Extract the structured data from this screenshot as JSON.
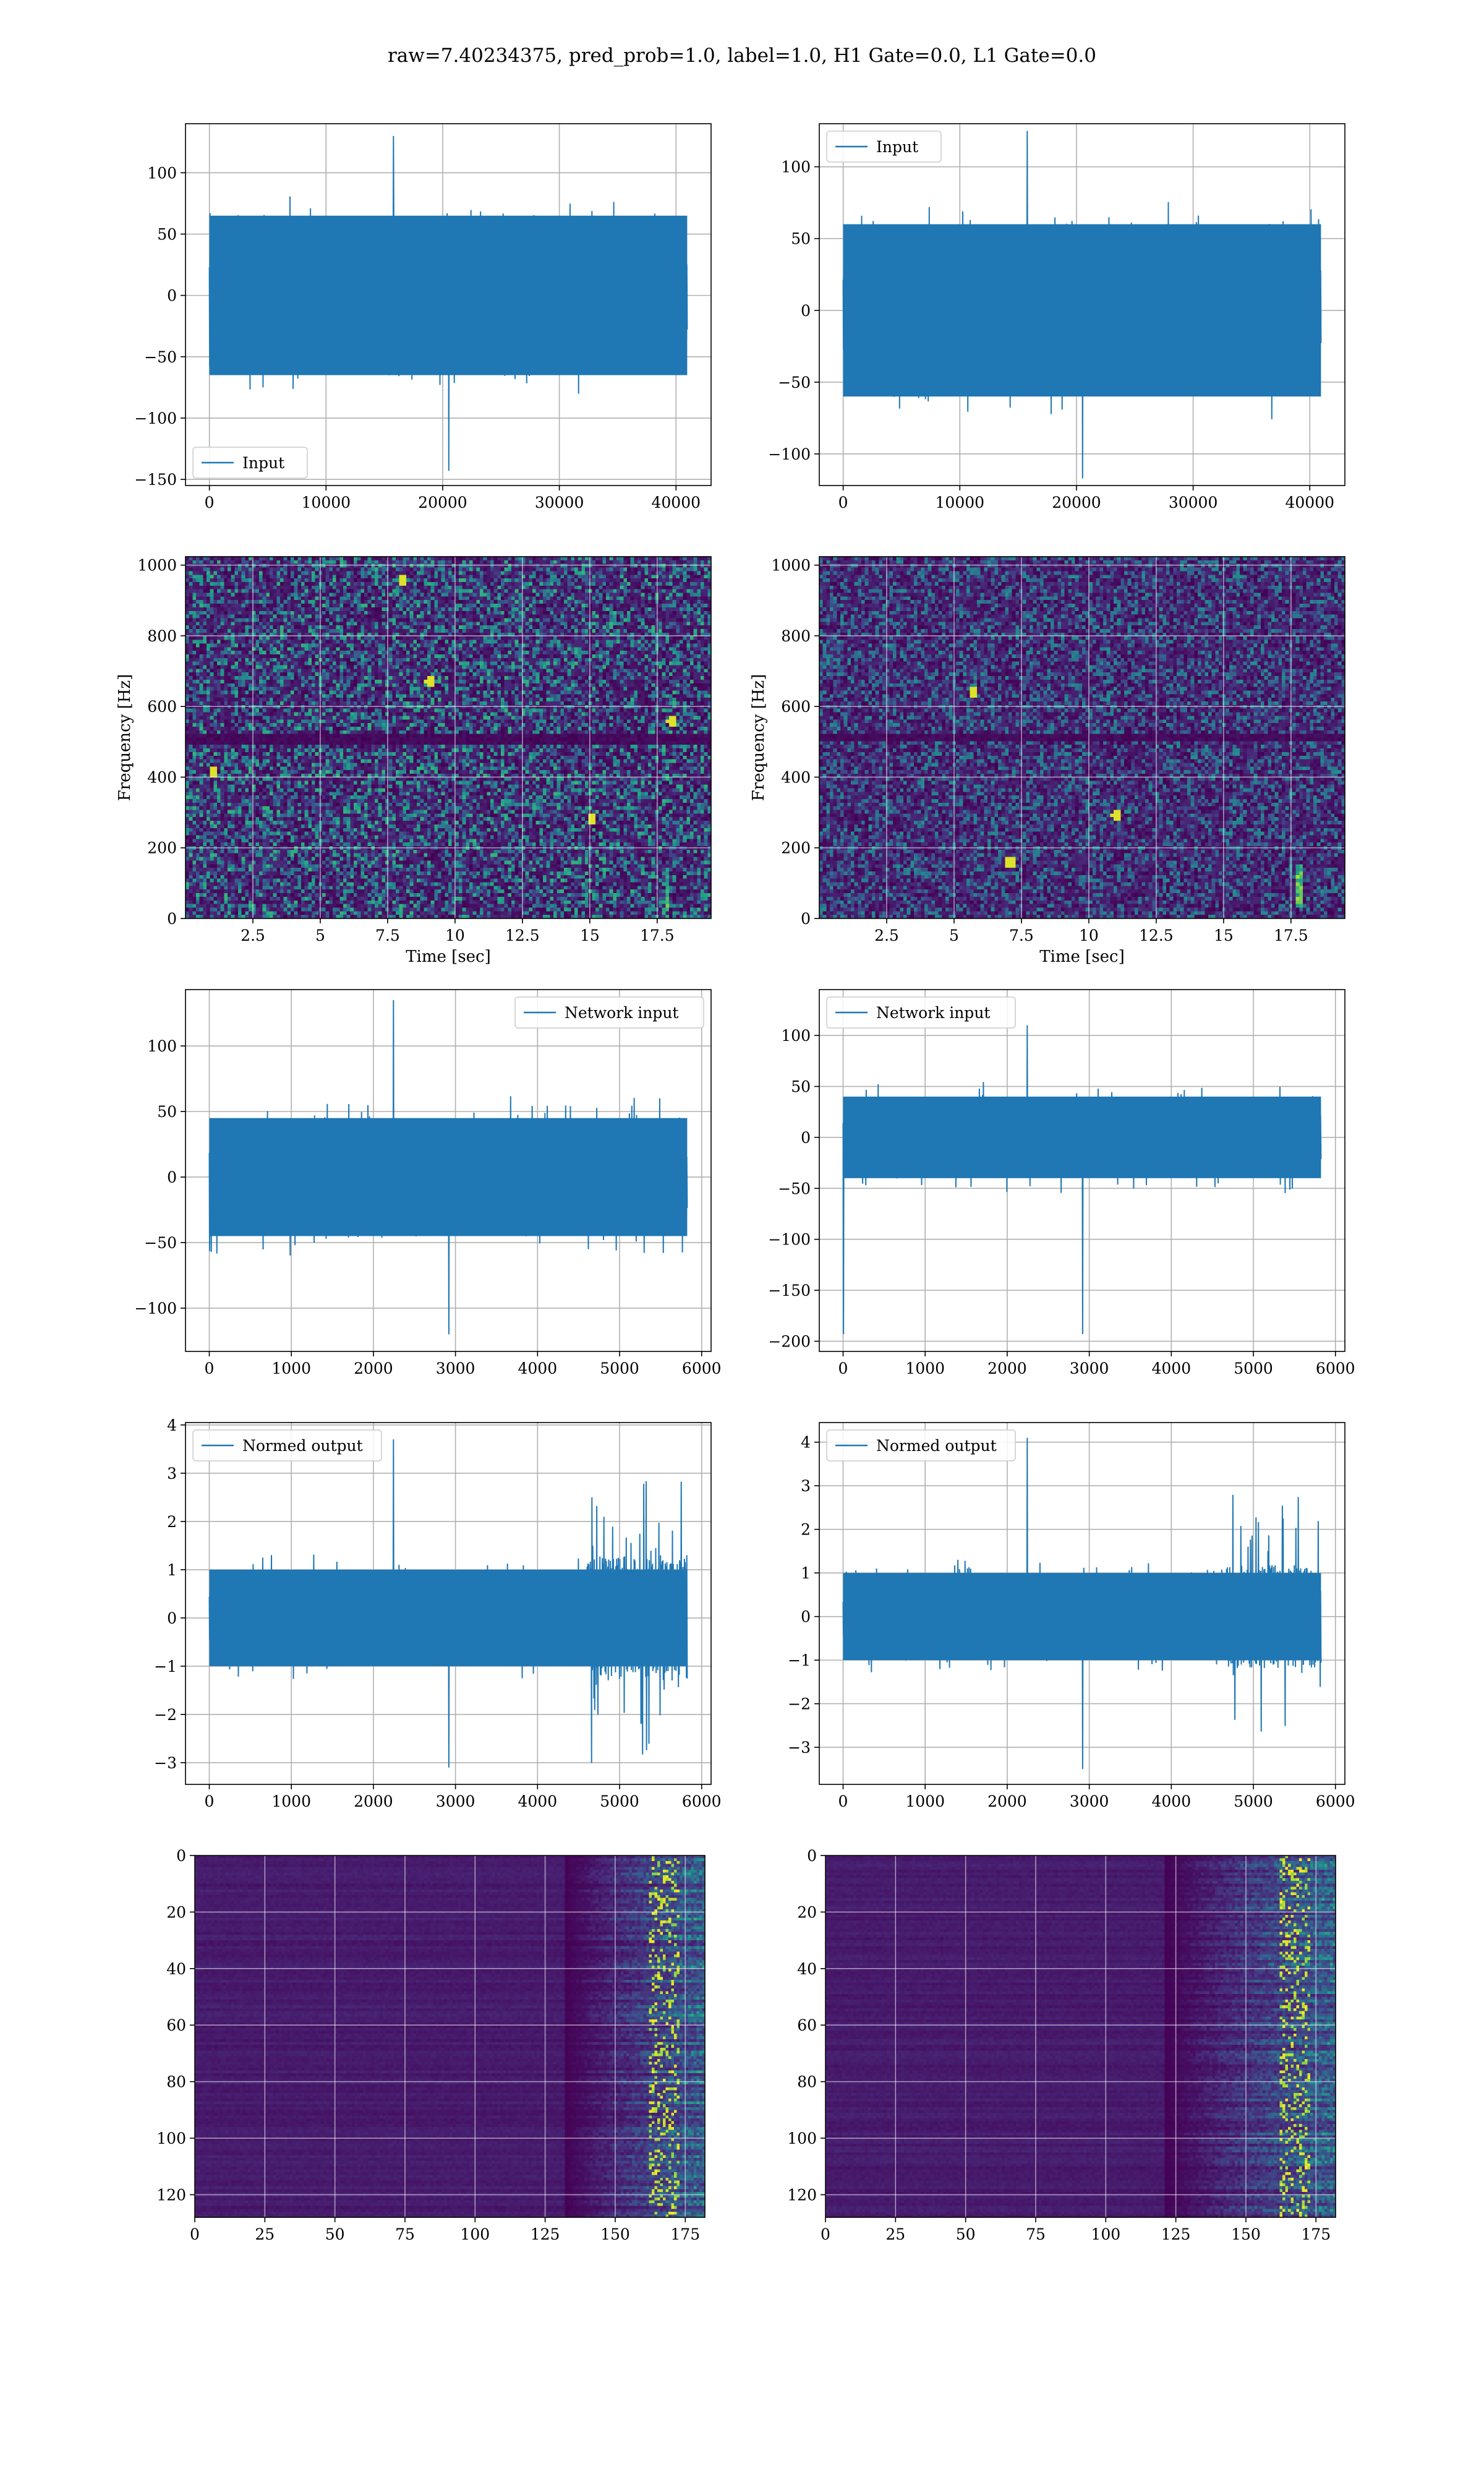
{
  "figure": {
    "title": "raw=7.40234375, pred_prob=1.0, label=1.0, H1 Gate=0.0, L1 Gate=0.0",
    "line_color": "#1f77b4",
    "grid": true
  },
  "chart_data": [
    {
      "type": "line",
      "series": [
        {
          "name": "Input",
          "x_range": [
            0,
            40960
          ],
          "y_envelope": [
            -65,
            65
          ],
          "extremes": [
            130,
            -143
          ]
        }
      ],
      "xlim": [
        -2048,
        43008
      ],
      "ylim": [
        -155,
        140
      ],
      "xticks": [
        0,
        10000,
        20000,
        30000,
        40000
      ],
      "yticks": [
        -150,
        -100,
        -50,
        0,
        50,
        100
      ],
      "legend": "lower-left",
      "xlabel": "",
      "ylabel": "",
      "shape": {
        "n": 1400,
        "base": 28,
        "seed": 11,
        "spike_freq": 0.09,
        "spike_amp": 45,
        "gain": []
      }
    },
    {
      "type": "line",
      "series": [
        {
          "name": "Input",
          "x_range": [
            0,
            40960
          ],
          "y_envelope": [
            -60,
            60
          ],
          "extremes": [
            125,
            -117
          ]
        }
      ],
      "xlim": [
        -2048,
        43008
      ],
      "ylim": [
        -122,
        130
      ],
      "xticks": [
        0,
        10000,
        20000,
        30000,
        40000
      ],
      "yticks": [
        -100,
        -50,
        0,
        50,
        100
      ],
      "legend": "upper-left",
      "xlabel": "",
      "ylabel": "",
      "shape": {
        "n": 1400,
        "base": 26,
        "seed": 23,
        "spike_freq": 0.09,
        "spike_amp": 42,
        "gain": []
      }
    },
    {
      "type": "heatmap",
      "xlim": [
        0,
        19.5
      ],
      "ylim": [
        0,
        1024
      ],
      "xticks": [
        2.5,
        5.0,
        7.5,
        10.0,
        12.5,
        15.0,
        17.5
      ],
      "yticks": [
        0,
        200,
        400,
        600,
        800,
        1000
      ],
      "xlabel": "Time [sec]",
      "ylabel": "Frequency [Hz]",
      "shape": {
        "seed": 5,
        "cols": 150,
        "rows": 100,
        "base": 0.28,
        "spread": 0.55,
        "dark_band_rows": [
          49,
          50,
          51
        ],
        "hot": [
          [
            0.46,
            0.66
          ],
          [
            0.41,
            0.94
          ],
          [
            0.77,
            0.28
          ],
          [
            0.92,
            0.55
          ],
          [
            0.05,
            0.41
          ]
        ],
        "chirp": [
          0.914,
          0.02,
          0.9,
          0.14
        ]
      }
    },
    {
      "type": "heatmap",
      "xlim": [
        0,
        19.5
      ],
      "ylim": [
        0,
        1024
      ],
      "xticks": [
        2.5,
        5.0,
        7.5,
        10.0,
        12.5,
        15.0,
        17.5
      ],
      "yticks": [
        0,
        200,
        400,
        600,
        800,
        1000
      ],
      "xlabel": "Time [sec]",
      "ylabel": "Frequency [Hz]",
      "shape": {
        "seed": 17,
        "cols": 150,
        "rows": 100,
        "base": 0.2,
        "spread": 0.42,
        "dark_band_rows": [
          49,
          50
        ],
        "hot": [
          [
            0.36,
            0.16
          ],
          [
            0.56,
            0.29
          ],
          [
            0.29,
            0.63
          ]
        ],
        "chirp": [
          0.91,
          0.03,
          0.905,
          0.16
        ]
      }
    },
    {
      "type": "line",
      "series": [
        {
          "name": "Network input",
          "x_range": [
            0,
            5824
          ],
          "y_envelope": [
            -45,
            45
          ],
          "extremes": [
            135,
            -120
          ]
        }
      ],
      "xlim": [
        -290,
        6115
      ],
      "ylim": [
        -133,
        143
      ],
      "xticks": [
        0,
        1000,
        2000,
        3000,
        4000,
        5000,
        6000
      ],
      "yticks": [
        -100,
        -50,
        0,
        50,
        100
      ],
      "legend": "upper-right",
      "xlabel": "",
      "ylabel": "",
      "shape": {
        "n": 1200,
        "base": 20,
        "seed": 31,
        "spike_freq": 0.1,
        "spike_amp": 40,
        "gain": []
      }
    },
    {
      "type": "line",
      "series": [
        {
          "name": "Network input",
          "x_range": [
            0,
            5824
          ],
          "y_envelope": [
            -40,
            40
          ],
          "extremes": [
            110,
            -193
          ]
        }
      ],
      "xlim": [
        -290,
        6115
      ],
      "ylim": [
        -210,
        145
      ],
      "xticks": [
        0,
        1000,
        2000,
        3000,
        4000,
        5000,
        6000
      ],
      "yticks": [
        -200,
        -150,
        -100,
        -50,
        0,
        50,
        100
      ],
      "legend": "upper-left",
      "xlabel": "",
      "ylabel": "",
      "shape": {
        "n": 1200,
        "base": 17,
        "seed": 43,
        "spike_freq": 0.1,
        "spike_amp": 35,
        "gain": []
      }
    },
    {
      "type": "line",
      "series": [
        {
          "name": "Normed output",
          "x_range": [
            0,
            5824
          ],
          "y_envelope": [
            -1,
            1
          ],
          "extremes": [
            3.7,
            -3.1
          ]
        }
      ],
      "xlim": [
        -290,
        6115
      ],
      "ylim": [
        -3.45,
        4.05
      ],
      "xticks": [
        0,
        1000,
        2000,
        3000,
        4000,
        5000,
        6000
      ],
      "yticks": [
        -3,
        -2,
        -1,
        0,
        1,
        2,
        3,
        4
      ],
      "legend": "upper-left",
      "xlabel": "",
      "ylabel": "",
      "shape": {
        "n": 1200,
        "base": 0.42,
        "seed": 53,
        "spike_freq": 0.1,
        "spike_amp": 0.8,
        "gain": [
          [
            0,
            0.79,
            1.0
          ],
          [
            0.79,
            1.0,
            2.3
          ]
        ]
      }
    },
    {
      "type": "line",
      "series": [
        {
          "name": "Normed output",
          "x_range": [
            0,
            5824
          ],
          "y_envelope": [
            -1,
            1
          ],
          "extremes": [
            4.1,
            -3.5
          ]
        }
      ],
      "xlim": [
        -290,
        6115
      ],
      "ylim": [
        -3.85,
        4.45
      ],
      "xticks": [
        0,
        1000,
        2000,
        3000,
        4000,
        5000,
        6000
      ],
      "yticks": [
        -3,
        -2,
        -1,
        0,
        1,
        2,
        3,
        4
      ],
      "legend": "upper-left",
      "xlabel": "",
      "ylabel": "",
      "shape": {
        "n": 1200,
        "base": 0.4,
        "seed": 67,
        "spike_freq": 0.1,
        "spike_amp": 0.8,
        "gain": [
          [
            0,
            0.8,
            1.0
          ],
          [
            0.8,
            1.0,
            2.2
          ]
        ]
      }
    },
    {
      "type": "heatmap",
      "xlim": [
        0,
        182
      ],
      "ylim": [
        128,
        0
      ],
      "xticks": [
        0,
        25,
        50,
        75,
        100,
        125,
        150,
        175
      ],
      "yticks": [
        0,
        20,
        40,
        60,
        80,
        100,
        120
      ],
      "xlabel": "",
      "ylabel": "",
      "shape": {
        "seed": 71,
        "cols": 182,
        "rows": 128,
        "activation_start": 0.72,
        "hot_col": 0.92
      }
    },
    {
      "type": "heatmap",
      "xlim": [
        0,
        182
      ],
      "ylim": [
        128,
        0
      ],
      "xticks": [
        0,
        25,
        50,
        75,
        100,
        125,
        150,
        175
      ],
      "yticks": [
        0,
        20,
        40,
        60,
        80,
        100,
        120
      ],
      "xlabel": "",
      "ylabel": "",
      "shape": {
        "seed": 89,
        "cols": 182,
        "rows": 128,
        "activation_start": 0.66,
        "hot_col": 0.92
      }
    }
  ]
}
